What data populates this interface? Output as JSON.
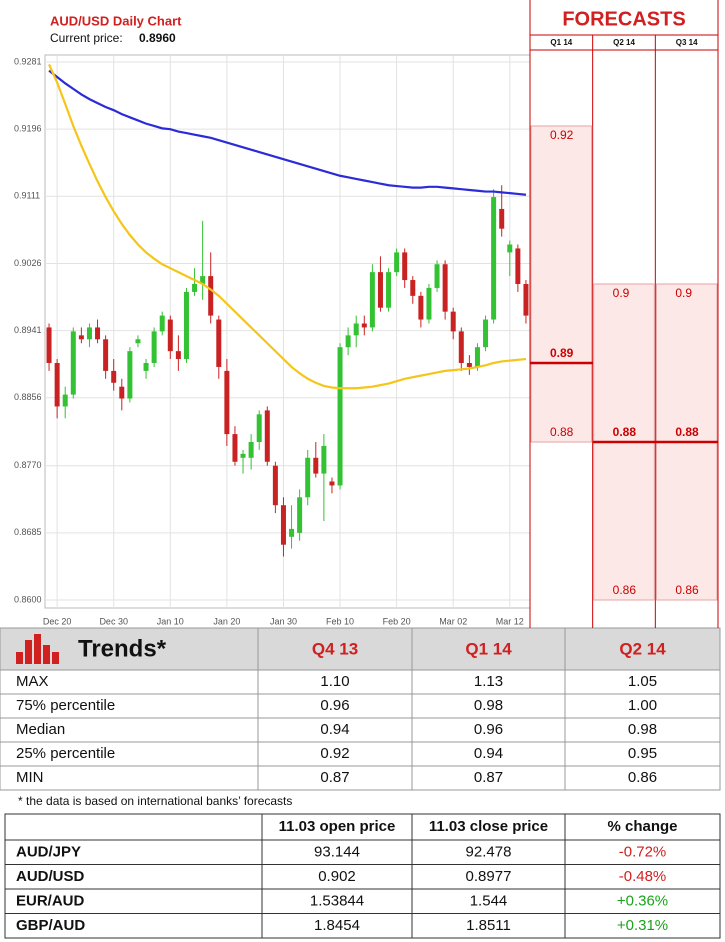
{
  "chart_data": [
    {
      "type": "candlestick",
      "title": "AUD/USD Daily Chart",
      "subtitle": "Current price:",
      "current_price": "0.8960",
      "categories": [
        null,
        "Dec 20",
        null,
        null,
        null,
        null,
        null,
        null,
        "Dec 30",
        null,
        null,
        null,
        null,
        null,
        null,
        "Jan 10",
        null,
        null,
        null,
        null,
        null,
        null,
        "Jan 20",
        null,
        null,
        null,
        null,
        null,
        null,
        "Jan 30",
        null,
        null,
        null,
        null,
        null,
        null,
        "Feb 10",
        null,
        null,
        null,
        null,
        null,
        null,
        "Feb 20",
        null,
        null,
        null,
        null,
        null,
        null,
        "Mar 02",
        null,
        null,
        null,
        null,
        null,
        null,
        "Mar 12",
        null,
        null
      ],
      "open": [
        0.8945,
        0.89,
        0.8845,
        0.886,
        0.8935,
        0.893,
        0.8945,
        0.893,
        0.889,
        0.887,
        0.8855,
        0.8925,
        0.889,
        0.89,
        0.894,
        0.8955,
        0.8915,
        0.8905,
        0.899,
        0.9,
        0.901,
        0.8955,
        0.889,
        0.881,
        0.878,
        0.878,
        0.88,
        0.884,
        0.877,
        0.872,
        0.868,
        0.8685,
        0.873,
        0.878,
        0.876,
        0.875,
        0.8745,
        0.892,
        0.8935,
        0.895,
        0.8945,
        0.9015,
        0.897,
        0.9015,
        0.904,
        0.9005,
        0.8985,
        0.8955,
        0.8995,
        0.9025,
        0.8965,
        0.894,
        0.89,
        0.8895,
        0.892,
        0.8955,
        0.9095,
        0.904,
        0.9045,
        0.9
      ],
      "high": [
        0.895,
        0.8905,
        0.887,
        0.8945,
        0.8945,
        0.895,
        0.8955,
        0.8935,
        0.8905,
        0.888,
        0.892,
        0.8935,
        0.8905,
        0.8945,
        0.8965,
        0.896,
        0.8935,
        0.8995,
        0.902,
        0.908,
        0.904,
        0.896,
        0.8905,
        0.882,
        0.879,
        0.881,
        0.884,
        0.8845,
        0.8775,
        0.873,
        0.872,
        0.874,
        0.879,
        0.88,
        0.881,
        0.8755,
        0.8925,
        0.8945,
        0.896,
        0.896,
        0.9025,
        0.9035,
        0.902,
        0.9045,
        0.9045,
        0.901,
        0.899,
        0.9,
        0.903,
        0.903,
        0.897,
        0.8945,
        0.891,
        0.8925,
        0.896,
        0.912,
        0.9125,
        0.9055,
        0.905,
        0.9005
      ],
      "low": [
        0.889,
        0.883,
        0.883,
        0.8855,
        0.8925,
        0.892,
        0.8925,
        0.888,
        0.8865,
        0.884,
        0.885,
        0.892,
        0.888,
        0.8895,
        0.8935,
        0.8905,
        0.889,
        0.89,
        0.8985,
        0.898,
        0.895,
        0.888,
        0.8795,
        0.877,
        0.876,
        0.8765,
        0.879,
        0.877,
        0.871,
        0.8655,
        0.8665,
        0.8675,
        0.872,
        0.8755,
        0.87,
        0.8735,
        0.874,
        0.891,
        0.892,
        0.8935,
        0.894,
        0.8965,
        0.8965,
        0.901,
        0.8995,
        0.8975,
        0.8945,
        0.895,
        0.899,
        0.8955,
        0.893,
        0.889,
        0.8885,
        0.889,
        0.8915,
        0.895,
        0.906,
        0.901,
        0.899,
        0.895
      ],
      "close": [
        0.89,
        0.8845,
        0.886,
        0.894,
        0.893,
        0.8945,
        0.893,
        0.889,
        0.8875,
        0.8855,
        0.8915,
        0.893,
        0.89,
        0.894,
        0.896,
        0.8915,
        0.8905,
        0.899,
        0.9,
        0.901,
        0.896,
        0.8895,
        0.881,
        0.8775,
        0.8785,
        0.88,
        0.8835,
        0.8775,
        0.872,
        0.867,
        0.869,
        0.873,
        0.878,
        0.876,
        0.8795,
        0.8745,
        0.892,
        0.8935,
        0.895,
        0.8945,
        0.9015,
        0.897,
        0.9015,
        0.904,
        0.9005,
        0.8985,
        0.8955,
        0.8995,
        0.9025,
        0.8965,
        0.894,
        0.89,
        0.8895,
        0.892,
        0.8955,
        0.911,
        0.907,
        0.905,
        0.9,
        0.896
      ],
      "up_color": "#33c233",
      "down_color": "#c92222",
      "series": [
        {
          "color": "#2b2bd9",
          "values": [
            0.927,
            0.9262,
            0.9254,
            0.9247,
            0.924,
            0.9234,
            0.9229,
            0.9224,
            0.922,
            0.9215,
            0.9211,
            0.9207,
            0.9203,
            0.92,
            0.9197,
            0.9196,
            0.9193,
            0.9191,
            0.9189,
            0.9187,
            0.9185,
            0.9182,
            0.9179,
            0.9176,
            0.9173,
            0.917,
            0.9167,
            0.9164,
            0.9161,
            0.9158,
            0.9155,
            0.9152,
            0.9149,
            0.9146,
            0.9143,
            0.914,
            0.9137,
            0.9135,
            0.9133,
            0.9131,
            0.9129,
            0.9127,
            0.9125,
            0.9124,
            0.9123,
            0.9122,
            0.9122,
            0.9123,
            0.9123,
            0.9122,
            0.9121,
            0.912,
            0.9119,
            0.9118,
            0.9117,
            0.9117,
            0.9116,
            0.9115,
            0.9114,
            0.9113
          ]
        },
        {
          "color": "#f5c518",
          "values": [
            0.9278,
            0.9255,
            0.9228,
            0.92,
            0.9175,
            0.9152,
            0.913,
            0.911,
            0.9092,
            0.9076,
            0.9062,
            0.905,
            0.904,
            0.9032,
            0.9025,
            0.902,
            0.9015,
            0.901,
            0.9005,
            0.9,
            0.8993,
            0.8985,
            0.8975,
            0.8965,
            0.8955,
            0.8945,
            0.8935,
            0.8925,
            0.8915,
            0.8905,
            0.8895,
            0.8887,
            0.888,
            0.8875,
            0.8871,
            0.8869,
            0.8868,
            0.8868,
            0.8868,
            0.8869,
            0.887,
            0.8872,
            0.8874,
            0.8877,
            0.888,
            0.8882,
            0.8884,
            0.8886,
            0.8888,
            0.889,
            0.8891,
            0.8892,
            0.8893,
            0.8895,
            0.8897,
            0.89,
            0.8902,
            0.8903,
            0.8904,
            0.8905
          ]
        }
      ],
      "ylim": [
        0.86,
        0.9281
      ],
      "yticks": [
        0.9281,
        0.9196,
        0.9111,
        0.9026,
        0.8941,
        0.8856,
        {
          "value": 0.877,
          "label": "0.8770"
        },
        0.8685,
        {
          "value": 0.86,
          "label": "0.8600"
        }
      ],
      "grid": true
    },
    {
      "type": "range",
      "title": "FORECASTS",
      "categories": [
        "Q1 14",
        "Q2 14",
        "Q3 14"
      ],
      "max": [
        0.92,
        0.9,
        0.9
      ],
      "median": [
        0.89,
        0.88,
        0.88
      ],
      "min": [
        0.88,
        0.86,
        0.86
      ],
      "ylim": [
        0.86,
        0.9281
      ],
      "color": "#cc0000",
      "fill": "#fde8e8"
    }
  ],
  "trends_table": {
    "title": "Trends*",
    "columns": [
      "Q4 13",
      "Q1 14",
      "Q2 14"
    ],
    "rows": [
      [
        "MAX",
        "1.10",
        "1.13",
        "1.05"
      ],
      [
        "75% percentile",
        "0.96",
        "0.98",
        "1.00"
      ],
      [
        "Median",
        "0.94",
        "0.96",
        "0.98"
      ],
      [
        "25% percentile",
        "0.92",
        "0.94",
        "0.95"
      ],
      [
        "MIN",
        "0.87",
        "0.87",
        "0.86"
      ]
    ]
  },
  "footnote": "* the data is based on international banks’ forecasts",
  "price_table": {
    "columns": [
      "11.03 open price",
      "11.03 close price",
      "% change"
    ],
    "rows": [
      [
        "AUD/JPY",
        "93.144",
        "92.478",
        "-0.72%"
      ],
      [
        "AUD/USD",
        "0.902",
        "0.8977",
        "-0.48%"
      ],
      [
        "EUR/AUD",
        "1.53844",
        "1.544",
        "+0.36%"
      ],
      [
        "GBP/AUD",
        "1.8454",
        "1.8511",
        "+0.31%"
      ]
    ]
  }
}
